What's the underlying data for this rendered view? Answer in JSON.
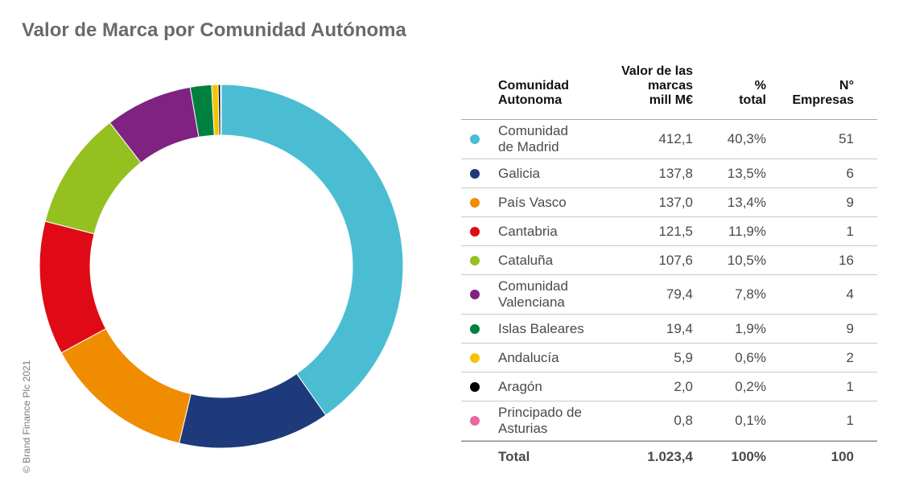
{
  "title": "Valor de Marca por Comunidad Autónoma",
  "copyright": "© Brand Finance Plc 2021",
  "table": {
    "headers": {
      "name": [
        "Comunidad",
        "Autonoma"
      ],
      "value": [
        "Valor de las",
        "marcas",
        "mill M€"
      ],
      "pct": [
        "%",
        "total"
      ],
      "count": [
        "N°",
        "Empresas"
      ]
    },
    "total": {
      "label": "Total",
      "value": "1.023,4",
      "pct": "100%",
      "count": "100"
    }
  },
  "chart_data": {
    "type": "pie",
    "variant": "donut",
    "title": "Valor de Marca por Comunidad Autónoma",
    "series": [
      {
        "name": "Comunidad de Madrid",
        "label": [
          "Comunidad",
          "de Madrid"
        ],
        "value": 412.1,
        "value_text": "412,1",
        "pct": "40,3%",
        "count": "51",
        "color": "#4bbdd3"
      },
      {
        "name": "Galicia",
        "label": [
          "Galicia"
        ],
        "value": 137.8,
        "value_text": "137,8",
        "pct": "13,5%",
        "count": "6",
        "color": "#1f3a7a"
      },
      {
        "name": "País Vasco",
        "label": [
          "País Vasco"
        ],
        "value": 137.0,
        "value_text": "137,0",
        "pct": "13,4%",
        "count": "9",
        "color": "#f08c00"
      },
      {
        "name": "Cantabria",
        "label": [
          "Cantabria"
        ],
        "value": 121.5,
        "value_text": "121,5",
        "pct": "11,9%",
        "count": "1",
        "color": "#e00a16"
      },
      {
        "name": "Cataluña",
        "label": [
          "Cataluña"
        ],
        "value": 107.6,
        "value_text": "107,6",
        "pct": "10,5%",
        "count": "16",
        "color": "#94c11f"
      },
      {
        "name": "Comunidad Valenciana",
        "label": [
          "Comunidad",
          "Valenciana"
        ],
        "value": 79.4,
        "value_text": "79,4",
        "pct": "7,8%",
        "count": "4",
        "color": "#7f2282"
      },
      {
        "name": "Islas Baleares",
        "label": [
          "Islas Baleares"
        ],
        "value": 19.4,
        "value_text": "19,4",
        "pct": "1,9%",
        "count": "9",
        "color": "#00803e"
      },
      {
        "name": "Andalucía",
        "label": [
          "Andalucía"
        ],
        "value": 5.9,
        "value_text": "5,9",
        "pct": "0,6%",
        "count": "2",
        "color": "#f5c400"
      },
      {
        "name": "Aragón",
        "label": [
          "Aragón"
        ],
        "value": 2.0,
        "value_text": "2,0",
        "pct": "0,2%",
        "count": "1",
        "color": "#000000"
      },
      {
        "name": "Principado de Asturias",
        "label": [
          "Principado de",
          "Asturias"
        ],
        "value": 0.8,
        "value_text": "0,8",
        "pct": "0,1%",
        "count": "1",
        "color": "#e8689e"
      }
    ]
  }
}
